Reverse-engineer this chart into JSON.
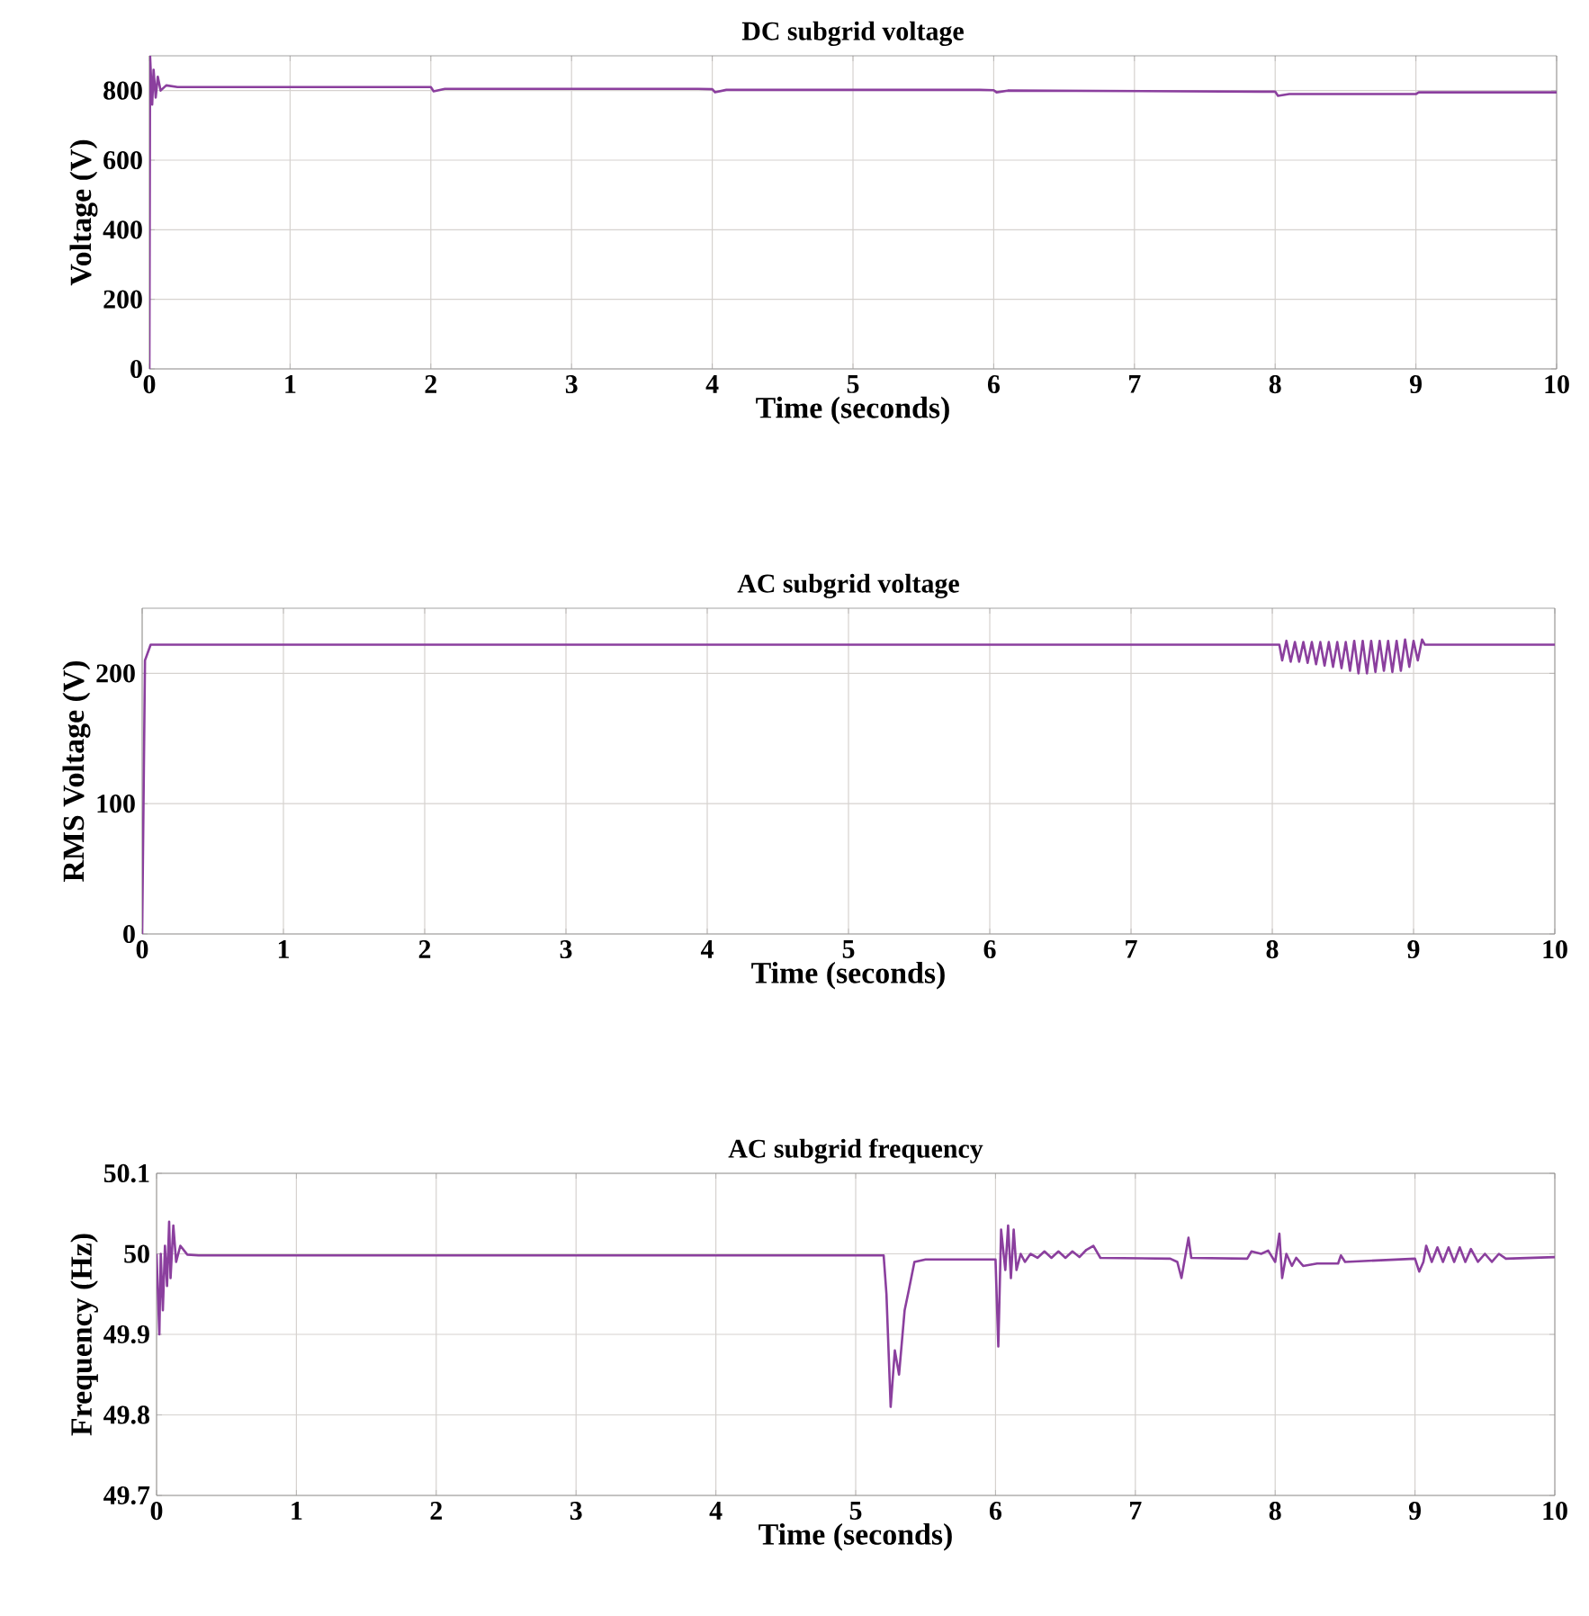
{
  "chart_data": [
    {
      "type": "line",
      "title": "DC subgrid voltage",
      "xlabel": "Time (seconds)",
      "ylabel": "Voltage (V)",
      "xlim": [
        0,
        10
      ],
      "xticks": [
        0,
        1,
        2,
        3,
        4,
        5,
        6,
        7,
        8,
        9,
        10
      ],
      "ylim": [
        0,
        900
      ],
      "yticks": [
        0,
        200,
        400,
        600,
        800
      ],
      "grid": true,
      "series": [
        {
          "color": "#8b3f9e",
          "x": [
            0,
            0.005,
            0.02,
            0.03,
            0.045,
            0.06,
            0.08,
            0.12,
            0.2,
            1.9,
            2.0,
            2.02,
            2.1,
            3.9,
            4.0,
            4.02,
            4.1,
            5.9,
            6.0,
            6.02,
            6.1,
            7.9,
            8.0,
            8.02,
            8.1,
            8.9,
            9.0,
            9.02,
            10
          ],
          "values": [
            0,
            900,
            760,
            860,
            780,
            840,
            800,
            815,
            810,
            810,
            810,
            798,
            805,
            805,
            804,
            795,
            802,
            802,
            801,
            795,
            800,
            797,
            797,
            785,
            790,
            790,
            790,
            795,
            795
          ]
        }
      ]
    },
    {
      "type": "line",
      "title": "AC subgrid voltage",
      "xlabel": "Time (seconds)",
      "ylabel": "RMS Voltage (V)",
      "xlim": [
        0,
        10
      ],
      "xticks": [
        0,
        1,
        2,
        3,
        4,
        5,
        6,
        7,
        8,
        9,
        10
      ],
      "ylim": [
        0,
        250
      ],
      "yticks": [
        0,
        100,
        200
      ],
      "grid": true,
      "series": [
        {
          "color": "#8b3f9e",
          "x": [
            0,
            0.02,
            0.06,
            8.05,
            8.07,
            8.1,
            8.13,
            8.16,
            8.19,
            8.22,
            8.25,
            8.28,
            8.31,
            8.34,
            8.37,
            8.4,
            8.43,
            8.46,
            8.49,
            8.52,
            8.55,
            8.58,
            8.61,
            8.64,
            8.67,
            8.7,
            8.73,
            8.76,
            8.79,
            8.82,
            8.85,
            8.88,
            8.91,
            8.94,
            8.97,
            9.0,
            9.03,
            9.06,
            9.08,
            10
          ],
          "values": [
            0,
            210,
            222,
            222,
            210,
            225,
            209,
            224,
            209,
            224,
            208,
            224,
            207,
            224,
            206,
            224,
            205,
            224,
            204,
            224,
            202,
            225,
            200,
            225,
            200,
            225,
            201,
            225,
            202,
            225,
            201,
            225,
            202,
            226,
            205,
            225,
            210,
            226,
            222,
            222
          ]
        }
      ]
    },
    {
      "type": "line",
      "title": "AC subgrid frequency",
      "xlabel": "Time (seconds)",
      "ylabel": "Frequency (Hz)",
      "xlim": [
        0,
        10
      ],
      "xticks": [
        0,
        1,
        2,
        3,
        4,
        5,
        6,
        7,
        8,
        9,
        10
      ],
      "ylim": [
        49.7,
        50.1
      ],
      "yticks": [
        49.7,
        49.8,
        49.9,
        50,
        50.1
      ],
      "grid": true,
      "series": [
        {
          "color": "#8b3f9e",
          "x": [
            0,
            0.02,
            0.03,
            0.045,
            0.06,
            0.075,
            0.09,
            0.1,
            0.12,
            0.14,
            0.17,
            0.22,
            0.3,
            5.2,
            5.22,
            5.25,
            5.28,
            5.31,
            5.35,
            5.38,
            5.42,
            5.5,
            6.0,
            6.02,
            6.04,
            6.07,
            6.09,
            6.11,
            6.13,
            6.15,
            6.18,
            6.21,
            6.25,
            6.3,
            6.35,
            6.4,
            6.45,
            6.5,
            6.55,
            6.6,
            6.65,
            6.7,
            6.75,
            7.25,
            7.3,
            7.33,
            7.36,
            7.38,
            7.4,
            7.8,
            7.83,
            7.9,
            7.95,
            8.0,
            8.03,
            8.05,
            8.08,
            8.12,
            8.15,
            8.2,
            8.3,
            8.45,
            8.47,
            8.5,
            9.0,
            9.03,
            9.06,
            9.08,
            9.12,
            9.16,
            9.2,
            9.24,
            9.28,
            9.32,
            9.36,
            9.4,
            9.45,
            9.5,
            9.55,
            9.6,
            9.65,
            10
          ],
          "values": [
            50.0,
            49.9,
            50.0,
            49.93,
            50.01,
            49.96,
            50.04,
            49.97,
            50.035,
            49.99,
            50.01,
            49.999,
            49.998,
            49.998,
            49.95,
            49.81,
            49.88,
            49.85,
            49.93,
            49.955,
            49.99,
            49.993,
            49.993,
            49.885,
            50.03,
            49.98,
            50.035,
            49.97,
            50.03,
            49.98,
            50.0,
            49.99,
            50.0,
            49.995,
            50.003,
            49.995,
            50.003,
            49.995,
            50.003,
            49.996,
            50.005,
            50.01,
            49.995,
            49.994,
            49.99,
            49.97,
            50.0,
            50.02,
            49.995,
            49.994,
            50.003,
            50.0,
            50.004,
            49.99,
            50.025,
            49.97,
            50.0,
            49.985,
            49.995,
            49.985,
            49.988,
            49.988,
            49.998,
            49.99,
            49.994,
            49.978,
            49.99,
            50.01,
            49.99,
            50.008,
            49.99,
            50.008,
            49.99,
            50.008,
            49.99,
            50.006,
            49.99,
            50.0,
            49.99,
            50.0,
            49.994,
            49.996
          ]
        }
      ]
    }
  ]
}
